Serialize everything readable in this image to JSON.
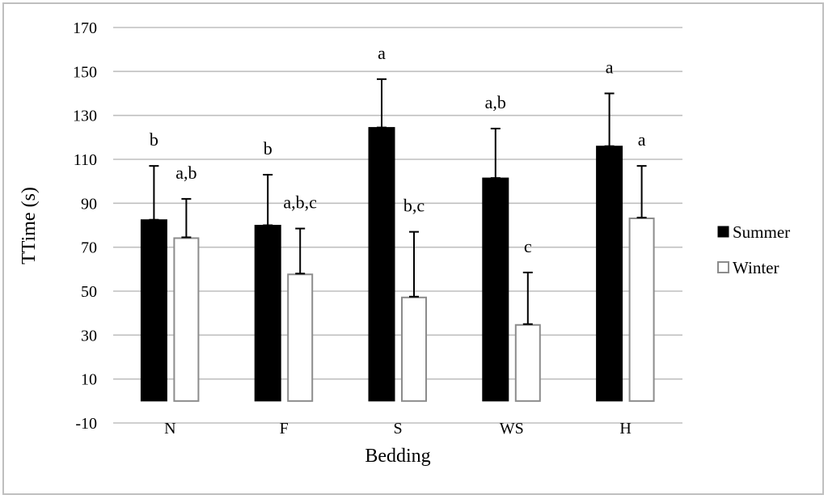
{
  "chart_data": {
    "type": "bar",
    "title": "",
    "xlabel": "Bedding",
    "ylabel": "TTime (s)",
    "ylim": [
      -10,
      170
    ],
    "yticks": [
      -10,
      10,
      30,
      50,
      70,
      90,
      110,
      130,
      150,
      170
    ],
    "grid": true,
    "legend_position": "right",
    "categories": [
      "N",
      "F",
      "S",
      "WS",
      "H"
    ],
    "series": [
      {
        "name": "Summer",
        "fill": "#000000",
        "stroke": "#000000",
        "values": [
          82.5,
          80,
          124.5,
          101.5,
          116
        ],
        "error_upper": [
          107,
          103,
          146.5,
          124,
          140
        ],
        "labels": [
          "b",
          "b",
          "a",
          "a,b",
          "a"
        ]
      },
      {
        "name": "Winter",
        "fill": "#ffffff",
        "stroke": "#8c8c8c",
        "values": [
          74.5,
          58,
          47.5,
          35,
          83.5
        ],
        "error_upper": [
          92,
          78.5,
          77,
          58.5,
          107
        ],
        "labels": [
          "a,b",
          "a,b,c",
          "b,c",
          "c",
          "a"
        ]
      }
    ]
  }
}
